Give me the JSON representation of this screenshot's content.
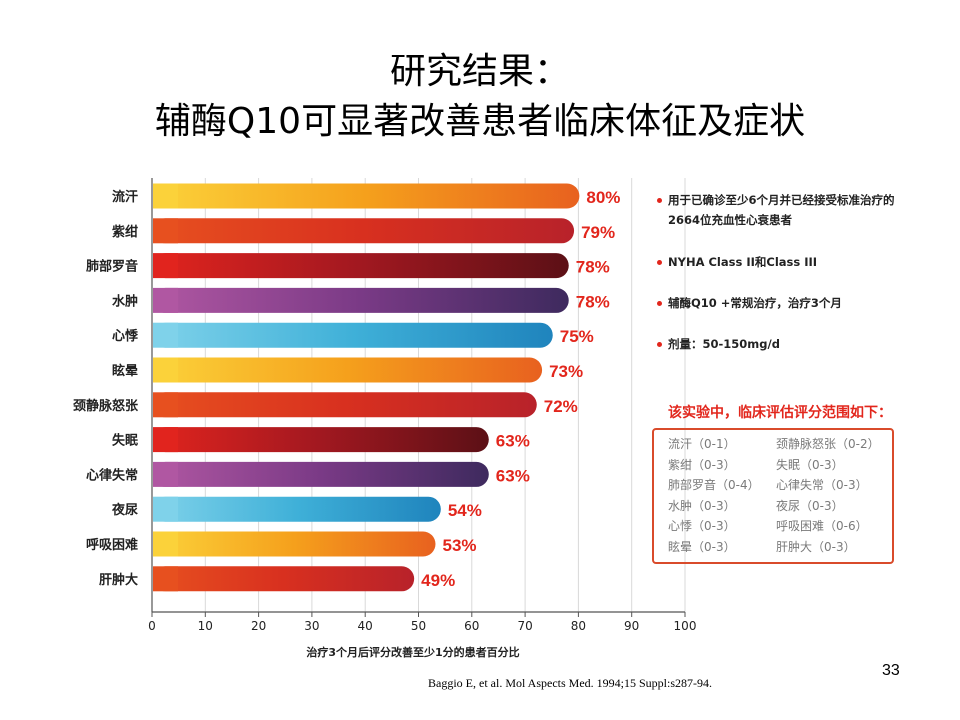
{
  "title": {
    "line1": "研究结果：",
    "line2": "辅酶Q10可显著改善患者临床体征及症状"
  },
  "chart_data": {
    "type": "bar",
    "orientation": "horizontal",
    "categories": [
      "流汗",
      "紫绀",
      "肺部罗音",
      "水肿",
      "心悸",
      "眩晕",
      "颈静脉怒张",
      "失眠",
      "心律失常",
      "夜尿",
      "呼吸困难",
      "肝肿大"
    ],
    "values": [
      80,
      79,
      78,
      78,
      75,
      73,
      72,
      63,
      63,
      54,
      53,
      49
    ],
    "value_labels": [
      "80%",
      "79%",
      "78%",
      "78%",
      "75%",
      "73%",
      "72%",
      "63%",
      "63%",
      "54%",
      "53%",
      "49%"
    ],
    "xlabel": "治疗3个月后评分改善至少1分的患者百分比",
    "ylabel": "",
    "xlim": [
      0,
      100
    ],
    "x_ticks": [
      "0",
      "10",
      "20",
      "30",
      "40",
      "50",
      "60",
      "70",
      "80",
      "90",
      "100"
    ],
    "grid": true,
    "colors": {
      "orange": [
        "#fbd23a",
        "#f5a01c",
        "#e8611f"
      ],
      "red": [
        "#e7501f",
        "#d8301f",
        "#b8222a"
      ],
      "darkred": [
        "#e1241e",
        "#a11820",
        "#5c1016"
      ],
      "purple": [
        "#b057a2",
        "#7a3a86",
        "#3e2a5e"
      ],
      "blue": [
        "#7fd2ea",
        "#3fb0d8",
        "#1f84bd"
      ],
      "label": "#e2261c"
    }
  },
  "notes": [
    {
      "line1": "用于已确诊至少6个月并已经接受标准治疗的",
      "line2": "2664位充血性心衰患者"
    },
    {
      "line1": "NYHA Class II和Class III"
    },
    {
      "line1": "辅酶Q10 +常规治疗，治疗3个月"
    },
    {
      "line1": "剂量：50-150mg/d"
    }
  ],
  "score_ranges": {
    "title": "该实验中，临床评估评分范围如下：",
    "items": [
      "流汗（0-1）",
      "颈静脉怒张（0-2）",
      "紫绀（0-3）",
      "失眠（0-3）",
      "肺部罗音（0-4）",
      "心律失常（0-3）",
      "水肿（0-3）",
      "夜尿（0-3）",
      "心悸（0-3）",
      "呼吸困难（0-6）",
      "眩晕（0-3）",
      "肝肿大（0-3）"
    ]
  },
  "page_number": "33",
  "reference": "Baggio E, et al. Mol Aspects Med. 1994;15 Suppl:s287-94."
}
